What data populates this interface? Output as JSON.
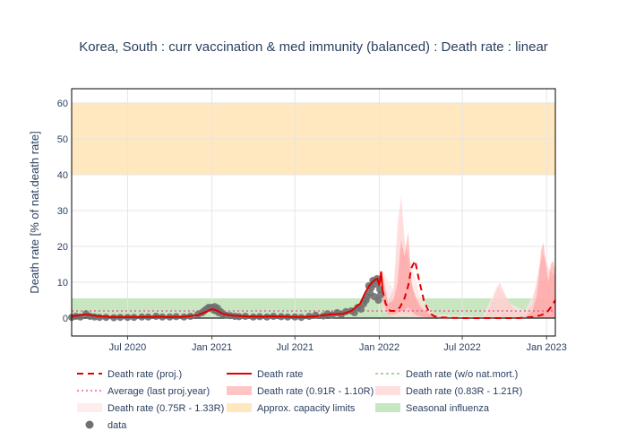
{
  "chart_data": {
    "type": "line",
    "title": "Korea, South : curr vaccination & med immunity (balanced) : Death rate : linear",
    "ylabel": "Death rate [% of nat.death rate]",
    "xlabel": "",
    "x_range": [
      "2020-03-01",
      "2023-01-20"
    ],
    "ylim": [
      -5,
      64
    ],
    "y_ticks": [
      0,
      10,
      20,
      30,
      40,
      50,
      60
    ],
    "x_ticks": [
      {
        "date": "2020-07-01",
        "label": "Jul 2020"
      },
      {
        "date": "2021-01-01",
        "label": "Jan 2021"
      },
      {
        "date": "2021-07-01",
        "label": "Jul 2021"
      },
      {
        "date": "2022-01-01",
        "label": "Jan 2022"
      },
      {
        "date": "2022-07-01",
        "label": "Jul 2022"
      },
      {
        "date": "2023-01-01",
        "label": "Jan 2023"
      }
    ],
    "grid": true,
    "legend_position": "bottom",
    "colors": {
      "red": "#e00000",
      "band1": "#ff8c8c",
      "band2": "#ffc8c8",
      "band3": "#ffe6e6",
      "capacity": "#ffe8c0",
      "flu": "#c8e6c0",
      "data": "#707070",
      "average": "#e0609a",
      "nat": "#90c878"
    },
    "capacity_limits": [
      40,
      60
    ],
    "seasonal_influenza": [
      0,
      5.5
    ],
    "average_last_proj_year": 2,
    "death_rate": {
      "x": [
        "2020-03-01",
        "2020-04-01",
        "2020-05-01",
        "2020-06-01",
        "2020-07-01",
        "2020-08-01",
        "2020-09-01",
        "2020-10-01",
        "2020-11-01",
        "2020-12-01",
        "2020-12-20",
        "2021-01-01",
        "2021-01-10",
        "2021-01-25",
        "2021-02-15",
        "2021-03-15",
        "2021-04-15",
        "2021-05-15",
        "2021-06-15",
        "2021-07-15",
        "2021-08-15",
        "2021-09-15",
        "2021-10-15",
        "2021-11-01",
        "2021-11-20",
        "2021-12-01",
        "2021-12-10",
        "2021-12-20",
        "2021-12-28",
        "2022-01-01",
        "2022-01-05",
        "2022-01-08"
      ],
      "y": [
        0.5,
        1.0,
        0.5,
        0.3,
        0.3,
        0.3,
        0.4,
        0.3,
        0.4,
        0.8,
        1.8,
        2.5,
        2.2,
        1.2,
        0.7,
        0.5,
        0.4,
        0.5,
        0.4,
        0.3,
        0.5,
        1.0,
        1.2,
        2.0,
        4.0,
        7.0,
        9.0,
        10.5,
        11.0,
        9.0,
        13.0,
        8.0
      ]
    },
    "death_rate_proj": {
      "x": [
        "2022-01-08",
        "2022-01-15",
        "2022-01-25",
        "2022-02-05",
        "2022-02-15",
        "2022-02-25",
        "2022-03-05",
        "2022-03-12",
        "2022-03-20",
        "2022-03-28",
        "2022-04-08",
        "2022-04-20",
        "2022-05-01",
        "2022-05-15",
        "2022-06-01",
        "2022-07-01",
        "2022-08-01",
        "2022-09-01",
        "2022-10-01",
        "2022-11-01",
        "2022-12-01",
        "2022-12-20",
        "2023-01-01",
        "2023-01-10",
        "2023-01-20"
      ],
      "y": [
        8.0,
        4.0,
        2.0,
        2.0,
        3.0,
        5.5,
        9.0,
        14.0,
        16.0,
        11.0,
        5.0,
        1.5,
        0.5,
        0.2,
        0.1,
        0.0,
        0.0,
        0.0,
        0.0,
        0.0,
        0.3,
        0.8,
        1.5,
        3.0,
        5.0
      ]
    },
    "band_0_91": {
      "x": [
        "2022-01-08",
        "2022-01-20",
        "2022-02-01",
        "2022-02-10",
        "2022-02-18",
        "2022-02-25",
        "2022-03-05",
        "2022-03-12",
        "2022-03-20",
        "2022-04-01",
        "2022-04-15",
        "2022-05-01",
        "2022-05-20",
        "2022-06-15",
        "2022-08-01",
        "2022-10-01",
        "2022-11-15",
        "2022-12-01",
        "2022-12-10",
        "2022-12-15",
        "2022-12-20",
        "2022-12-25",
        "2023-01-01",
        "2023-01-05",
        "2023-01-10",
        "2023-01-15",
        "2023-01-20"
      ],
      "upper": [
        12,
        4,
        5,
        10,
        22,
        17,
        24,
        10,
        6,
        3,
        1.5,
        0.5,
        0.2,
        0.1,
        0.0,
        0.0,
        0.2,
        2,
        6,
        12,
        19,
        21,
        13,
        10,
        15,
        16,
        13
      ],
      "lower": [
        5,
        1,
        1,
        1.5,
        2,
        2,
        3,
        2,
        1,
        0.5,
        0.2,
        0.0,
        0.0,
        0.0,
        0.0,
        0.0,
        0.0,
        0.0,
        0.0,
        0.0,
        0.0,
        0.0,
        0.0,
        0.0,
        0.0,
        0.0,
        0.0
      ]
    },
    "band_0_83": {
      "x": [
        "2022-01-08",
        "2022-01-20",
        "2022-02-01",
        "2022-02-10",
        "2022-02-18",
        "2022-02-25",
        "2022-03-05",
        "2022-03-15",
        "2022-04-01",
        "2022-04-20",
        "2022-05-15",
        "2022-07-01",
        "2022-08-20",
        "2022-09-05",
        "2022-09-20",
        "2022-10-05",
        "2022-10-25",
        "2022-11-15",
        "2022-12-01",
        "2022-12-15",
        "2022-12-25",
        "2023-01-05",
        "2023-01-20"
      ],
      "upper": [
        13,
        5,
        8,
        26,
        34,
        22,
        16,
        8,
        4,
        1.5,
        0.5,
        0.0,
        0.5,
        5,
        10,
        6,
        2,
        1.5,
        4,
        14,
        18,
        14,
        12
      ],
      "lower": [
        3,
        0.5,
        0.5,
        0.5,
        1,
        1,
        1,
        0.5,
        0.2,
        0.0,
        0.0,
        0.0,
        0.0,
        0.0,
        0.0,
        0.0,
        0.0,
        0.0,
        0.0,
        0.0,
        0.0,
        0.0,
        0.0
      ]
    },
    "band_0_75": {
      "x": [
        "2022-01-08",
        "2022-02-01",
        "2022-02-15",
        "2022-03-05",
        "2022-04-01",
        "2022-05-01",
        "2022-08-15",
        "2022-09-15",
        "2022-10-15",
        "2022-11-15",
        "2022-12-15",
        "2023-01-20"
      ],
      "upper": [
        13,
        8,
        20,
        18,
        6,
        1,
        0.5,
        9,
        4,
        2,
        10,
        12
      ],
      "lower": [
        2,
        0.3,
        0.5,
        0.5,
        0.2,
        0.0,
        0.0,
        0.0,
        0.0,
        0.0,
        0.0,
        0.0
      ]
    },
    "data_points": {
      "x": [
        "2020-03-01",
        "2020-03-10",
        "2020-03-20",
        "2020-04-01",
        "2020-04-10",
        "2020-04-20",
        "2020-05-01",
        "2020-05-15",
        "2020-06-01",
        "2020-06-15",
        "2020-07-01",
        "2020-07-15",
        "2020-08-01",
        "2020-08-15",
        "2020-09-01",
        "2020-09-15",
        "2020-10-01",
        "2020-10-15",
        "2020-11-01",
        "2020-11-15",
        "2020-12-01",
        "2020-12-10",
        "2020-12-15",
        "2020-12-20",
        "2020-12-25",
        "2020-12-29",
        "2021-01-01",
        "2021-01-03",
        "2021-01-05",
        "2021-01-07",
        "2021-01-10",
        "2021-01-13",
        "2021-01-16",
        "2021-01-20",
        "2021-01-25",
        "2021-02-01",
        "2021-02-10",
        "2021-02-20",
        "2021-03-01",
        "2021-03-15",
        "2021-04-01",
        "2021-04-15",
        "2021-05-01",
        "2021-05-15",
        "2021-06-01",
        "2021-06-15",
        "2021-07-01",
        "2021-07-15",
        "2021-08-01",
        "2021-08-15",
        "2021-09-01",
        "2021-09-10",
        "2021-09-20",
        "2021-10-01",
        "2021-10-10",
        "2021-10-20",
        "2021-11-01",
        "2021-11-08",
        "2021-11-15",
        "2021-11-22",
        "2021-11-28",
        "2021-12-03",
        "2021-12-06",
        "2021-12-09",
        "2021-12-12",
        "2021-12-15",
        "2021-12-18",
        "2021-12-21",
        "2021-12-24",
        "2021-12-27",
        "2021-12-30",
        "2022-01-02",
        "2022-01-04"
      ],
      "y": [
        0.2,
        0.5,
        0.3,
        1.2,
        0.5,
        0.3,
        0.2,
        0.2,
        0.1,
        0.2,
        0.2,
        0.2,
        0.3,
        0.3,
        0.5,
        0.3,
        0.3,
        0.4,
        0.3,
        0.5,
        1.0,
        1.5,
        2.0,
        2.5,
        3.0,
        2.8,
        3.0,
        2.5,
        2.2,
        3.2,
        2.0,
        2.8,
        1.5,
        1.8,
        1.0,
        0.8,
        0.7,
        0.5,
        0.4,
        0.5,
        0.3,
        0.4,
        0.3,
        0.5,
        0.4,
        0.3,
        0.3,
        0.2,
        0.5,
        0.8,
        0.6,
        1.2,
        0.8,
        1.5,
        1.0,
        1.8,
        2.0,
        1.5,
        3.0,
        2.5,
        4.0,
        5.0,
        6.0,
        9.0,
        7.0,
        8.5,
        10.5,
        6.0,
        9.5,
        11.0,
        5.0,
        8.0,
        6.5
      ]
    }
  },
  "legend": {
    "proj": "Death rate (proj.)",
    "death_rate": "Death rate",
    "nat": "Death rate (w/o nat.mort.)",
    "average": "Average (last proj.year)",
    "band_0_91": "Death rate (0.91R - 1.10R)",
    "band_0_83": "Death rate (0.83R - 1.21R)",
    "band_0_75": "Death rate (0.75R - 1.33R)",
    "capacity": "Approx. capacity limits",
    "flu": "Seasonal influenza",
    "data": "data"
  }
}
